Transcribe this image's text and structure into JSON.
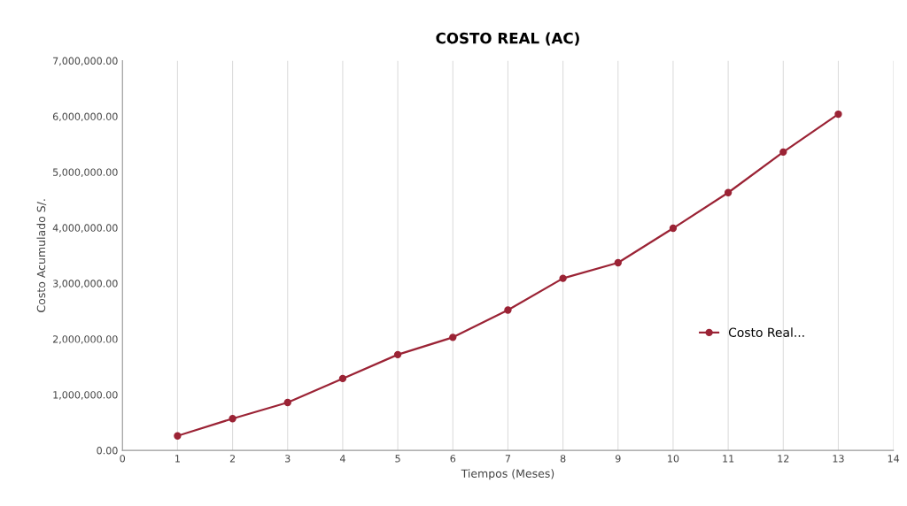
{
  "chart_data": {
    "type": "line",
    "title": "COSTO REAL (AC)",
    "xlabel": "Tiempos (Meses)",
    "ylabel": "Costo Acumulado S/.",
    "x": [
      1,
      2,
      3,
      4,
      5,
      6,
      7,
      8,
      9,
      10,
      11,
      12,
      13
    ],
    "series": [
      {
        "name": "Costo Real...",
        "color": "#9b2335",
        "values": [
          260000,
          570000,
          860000,
          1290000,
          1720000,
          2030000,
          2520000,
          3090000,
          3370000,
          3990000,
          4630000,
          5360000,
          6040000
        ]
      }
    ],
    "xlim": [
      0,
      14
    ],
    "xticks": [
      0,
      1,
      2,
      3,
      4,
      5,
      6,
      7,
      8,
      9,
      10,
      11,
      12,
      13,
      14
    ],
    "ylim": [
      0,
      7000000
    ],
    "yticks": [
      {
        "value": 0,
        "label": "0.00"
      },
      {
        "value": 1000000,
        "label": "1,000,000.00"
      },
      {
        "value": 2000000,
        "label": "2,000,000.00"
      },
      {
        "value": 3000000,
        "label": "3,000,000.00"
      },
      {
        "value": 4000000,
        "label": "4,000,000.00"
      },
      {
        "value": 5000000,
        "label": "5,000,000.00"
      },
      {
        "value": 6000000,
        "label": "6,000,000.00"
      },
      {
        "value": 7000000,
        "label": "7,000,000.00"
      }
    ],
    "grid": "x",
    "legend": "right",
    "marker": "circle",
    "line_style": "solid"
  }
}
